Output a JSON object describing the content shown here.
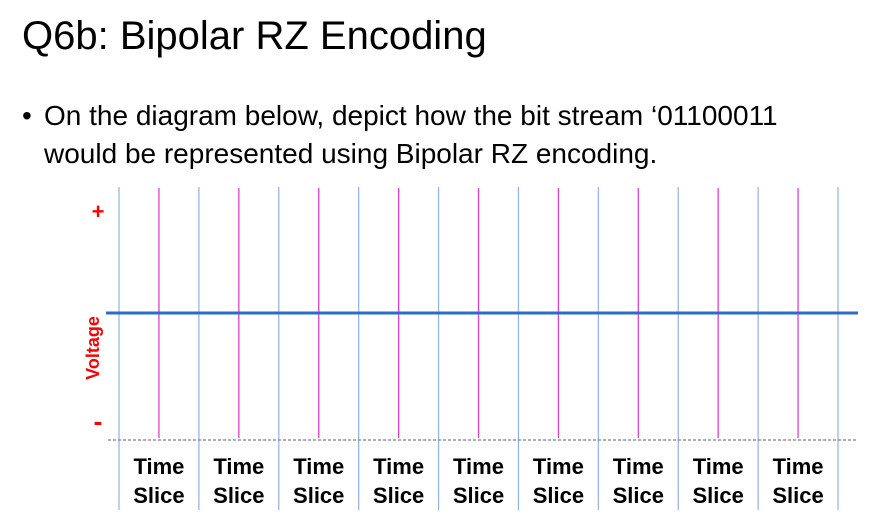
{
  "slide": {
    "title": "Q6b: Bipolar RZ Encoding",
    "bullet_line1": "On the diagram below, depict how the bit stream ‘01100011",
    "bullet_line2": "would be represented using Bipolar RZ encoding."
  },
  "diagram": {
    "y_axis_label": "Voltage",
    "plus_label": "+",
    "minus_label": "-",
    "slice_labels": [
      [
        "Time",
        "Slice"
      ],
      [
        "Time",
        "Slice"
      ],
      [
        "Time",
        "Slice"
      ],
      [
        "Time",
        "Slice"
      ],
      [
        "Time",
        "Slice"
      ],
      [
        "Time",
        "Slice"
      ],
      [
        "Time",
        "Slice"
      ],
      [
        "Time",
        "Slice"
      ],
      [
        "Time",
        "Slice"
      ]
    ],
    "colors": {
      "boundary_line": "#8fb0e8",
      "mid_line": "#e040d0",
      "zero_line": "#2b6cc4",
      "baseline": "#808080",
      "axis_label": "#ff0000"
    }
  }
}
